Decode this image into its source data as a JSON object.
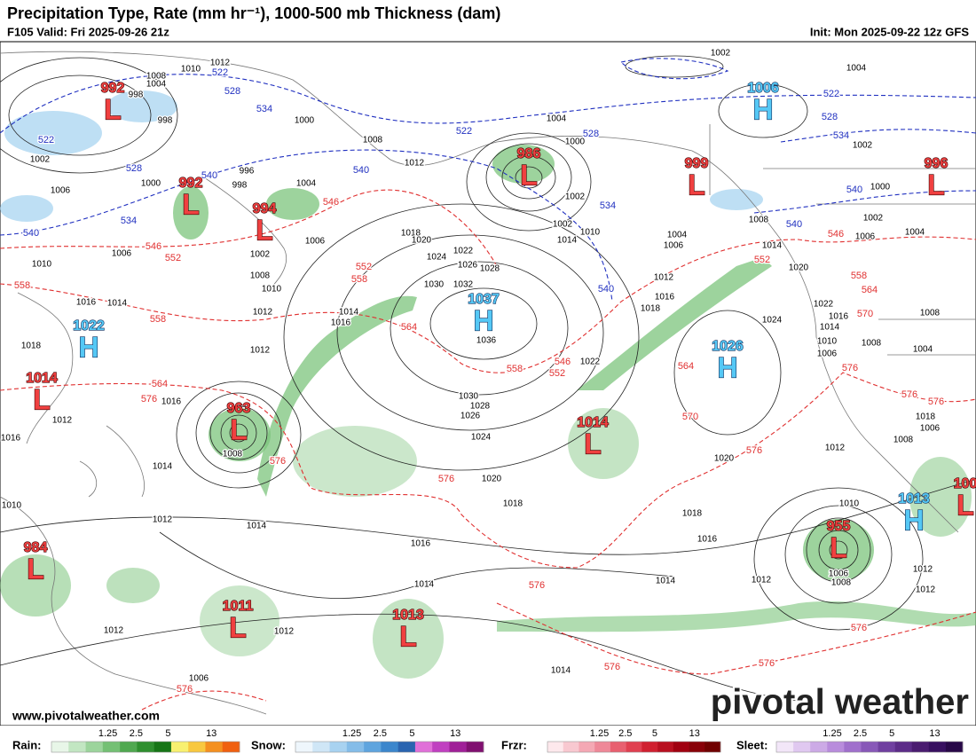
{
  "header": {
    "title": "Precipitation Type, Rate (mm hr⁻¹), 1000-500 mb Thickness (dam)",
    "valid": "F105 Valid: Fri 2025-09-26 21z",
    "init": "Init: Mon 2025-09-22 12z GFS"
  },
  "pressure_centers": [
    {
      "type": "L",
      "value": "992"
    },
    {
      "type": "H",
      "value": "1006"
    },
    {
      "type": "L",
      "value": "986"
    },
    {
      "type": "L",
      "value": "999"
    },
    {
      "type": "L",
      "value": "996"
    },
    {
      "type": "L",
      "value": "992"
    },
    {
      "type": "L",
      "value": "994"
    },
    {
      "type": "H",
      "value": "1037"
    },
    {
      "type": "H",
      "value": "1022"
    },
    {
      "type": "H",
      "value": "1026"
    },
    {
      "type": "L",
      "value": "1014"
    },
    {
      "type": "L",
      "value": "963"
    },
    {
      "type": "L",
      "value": "1014"
    },
    {
      "type": "H",
      "value": "1013"
    },
    {
      "type": "L",
      "value": "100"
    },
    {
      "type": "L",
      "value": "955"
    },
    {
      "type": "L",
      "value": "984"
    },
    {
      "type": "L",
      "value": "1011"
    },
    {
      "type": "L",
      "value": "1013"
    }
  ],
  "isobar_labels": [
    1012,
    1010,
    1008,
    1004,
    998,
    998,
    1002,
    1006,
    1000,
    996,
    998,
    1000,
    1004,
    1008,
    1012,
    1002,
    1006,
    1008,
    1010,
    1012,
    1014,
    1016,
    1018,
    1020,
    1024,
    1022,
    1026,
    1028,
    1030,
    1032,
    1036,
    1030,
    1028,
    1026,
    1024,
    1020,
    1018,
    1016,
    1014,
    1016,
    1018,
    1020,
    1024,
    1022,
    1018,
    1016,
    1012,
    1006,
    1004,
    1002,
    1010,
    1014,
    1000,
    1002,
    1004,
    1002,
    1004,
    1002,
    1000,
    1002,
    1004,
    1006,
    1008,
    1014,
    1020,
    1022,
    1016,
    1014,
    1010,
    1006,
    1008,
    1004,
    1008,
    1012,
    1018,
    1006,
    1008,
    1010,
    1006,
    1008,
    1012,
    1012,
    1012,
    1014,
    1014,
    1014,
    1012,
    1014,
    1016,
    1016,
    1012,
    1018,
    1016,
    1014,
    1010,
    1006,
    1012,
    1010,
    1012,
    1012,
    1006,
    1008
  ],
  "thickness_labels": [
    546,
    552,
    558,
    564,
    558,
    552,
    546,
    564,
    570,
    576,
    576,
    576,
    576,
    564,
    558,
    558,
    546,
    552,
    546,
    552,
    558,
    564,
    570,
    576,
    576,
    576,
    576,
    576,
    576,
    576,
    576,
    522,
    528,
    534,
    522,
    528,
    534,
    540,
    540,
    540,
    522,
    528,
    534,
    540,
    522,
    528,
    534,
    540,
    540
  ],
  "legend": [
    {
      "label": "Rain:",
      "ticks": [
        1.25,
        2.5,
        5,
        13
      ]
    },
    {
      "label": "Snow:",
      "ticks": [
        1.25,
        2.5,
        5,
        13
      ]
    },
    {
      "label": "Frzr:",
      "ticks": [
        1.25,
        2.5,
        5,
        13
      ]
    },
    {
      "label": "Sleet:",
      "ticks": [
        1.25,
        2.5,
        5,
        13
      ]
    }
  ],
  "watermark": "www.pivotalweather.com",
  "logo": "pivotal weather"
}
